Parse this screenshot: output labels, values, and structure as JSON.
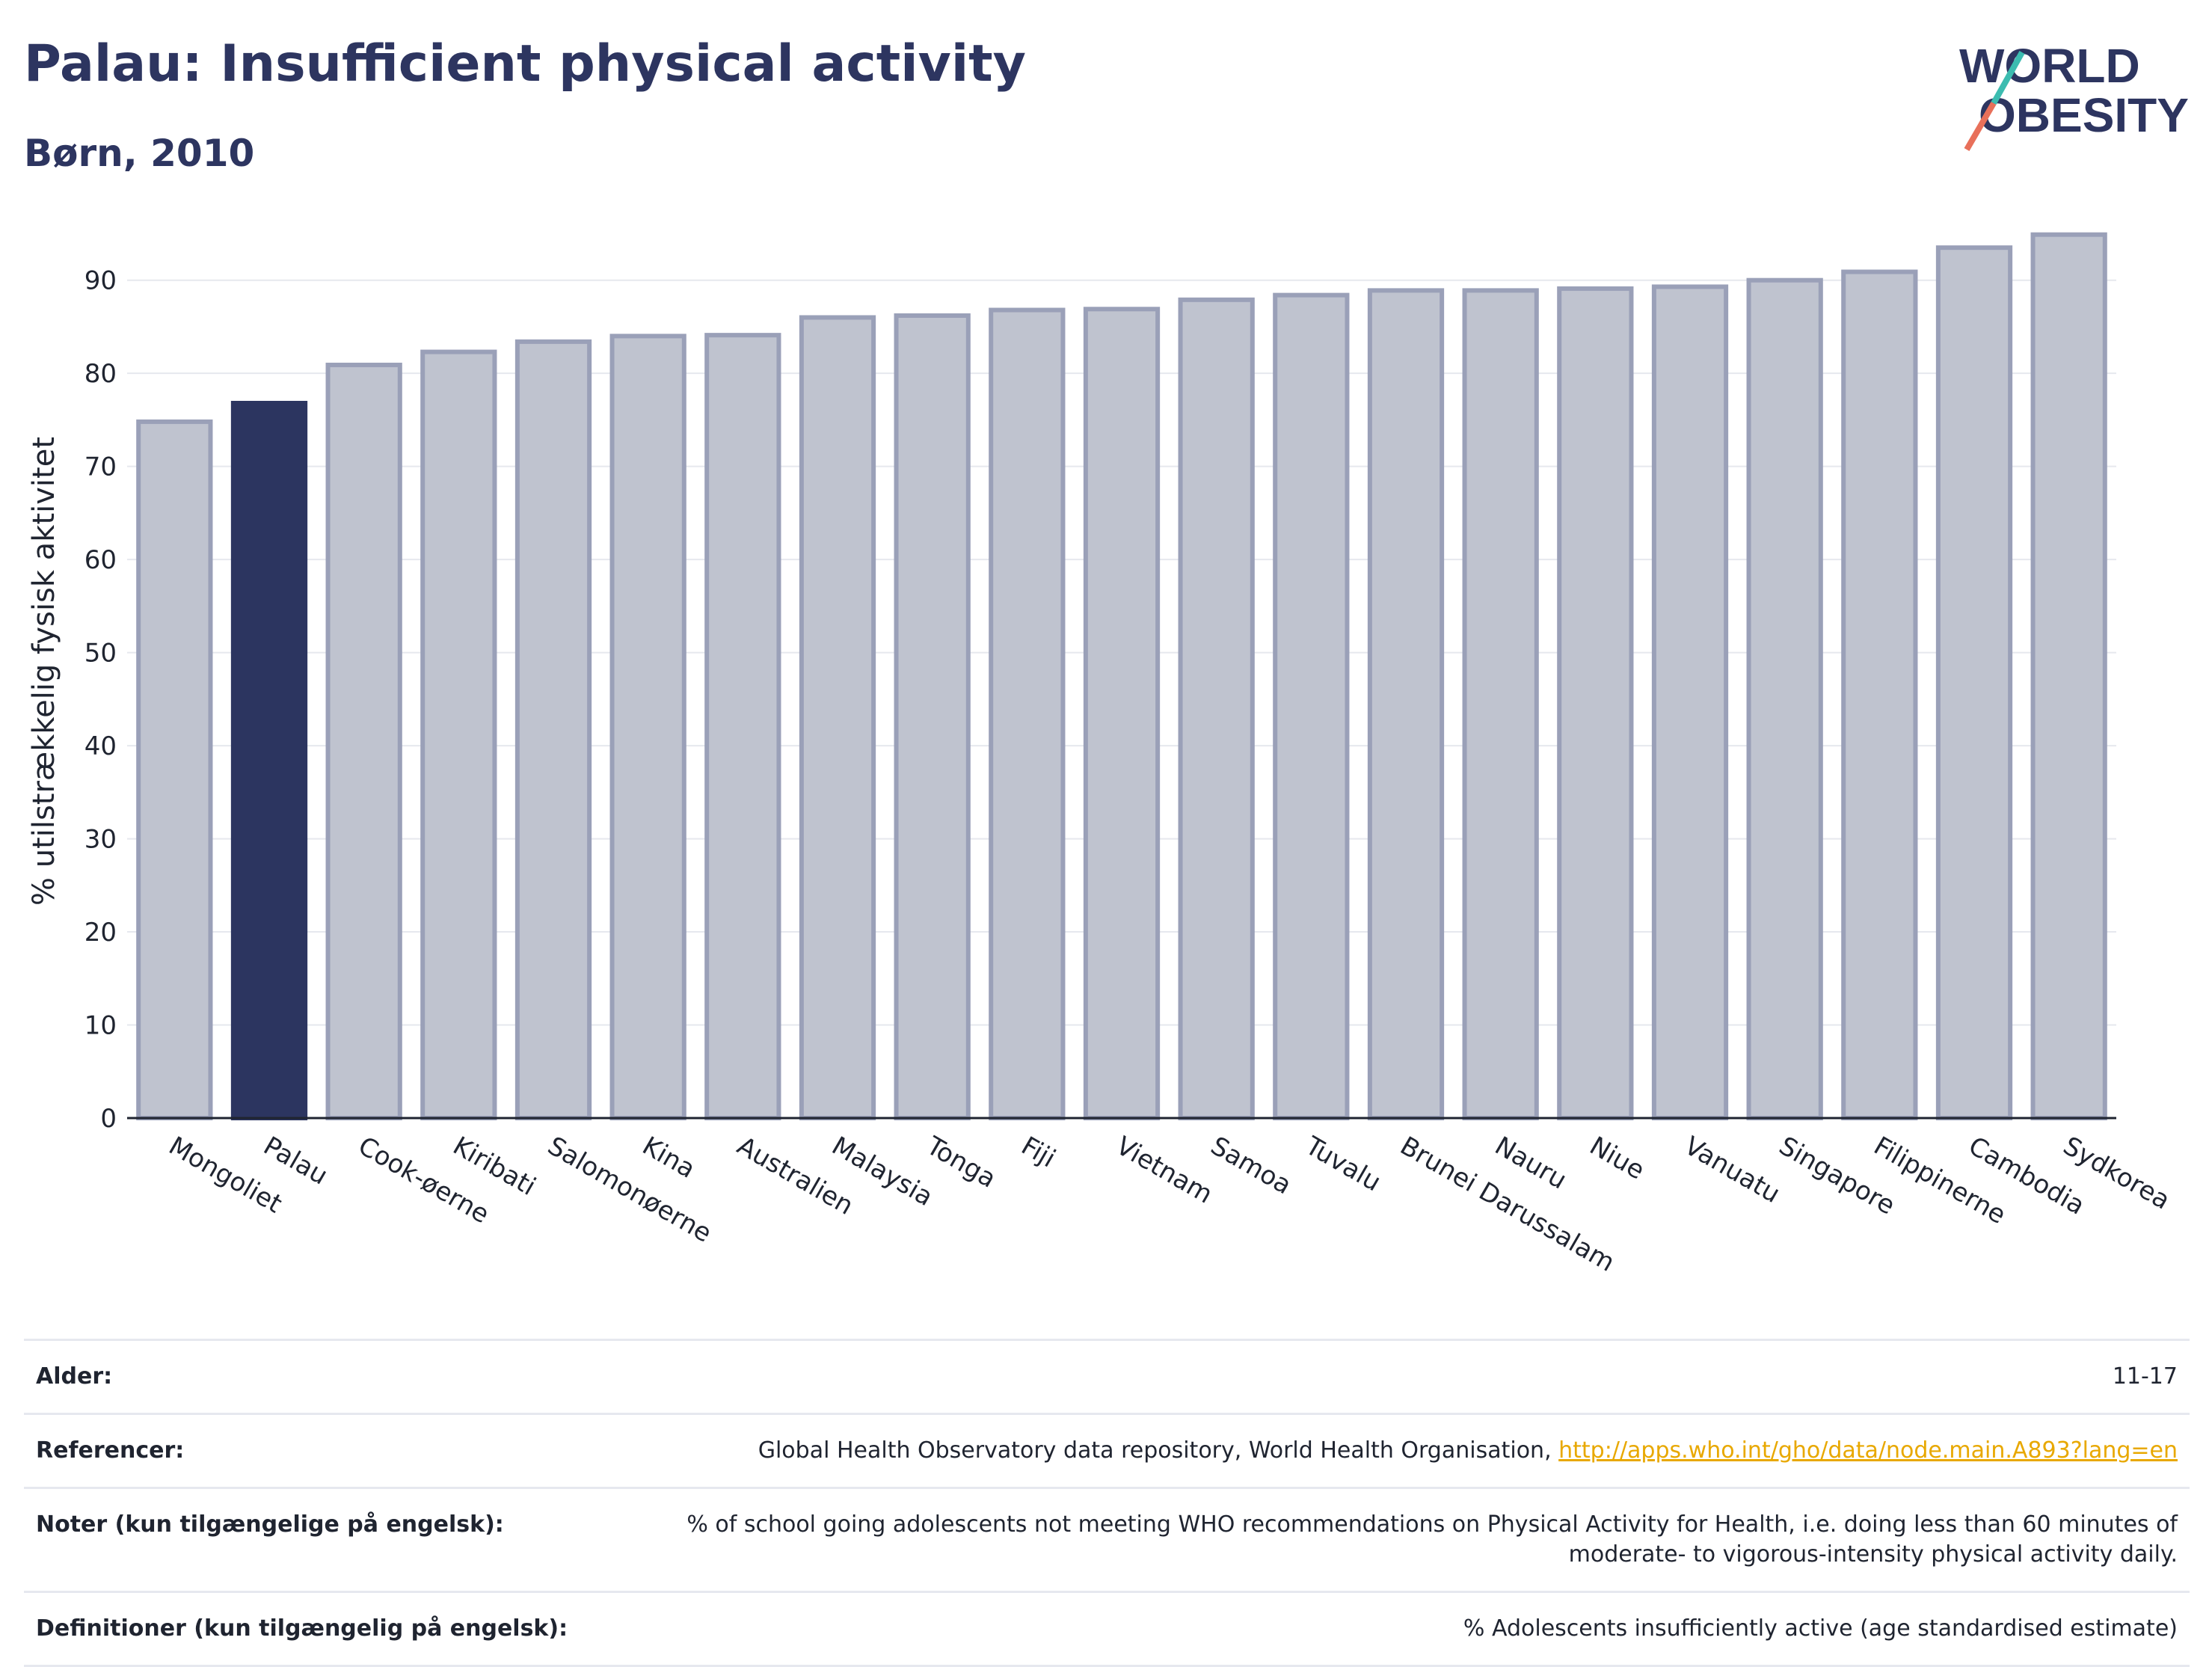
{
  "header": {
    "title": "Palau: Insufficient physical activity",
    "subtitle": "Børn, 2010"
  },
  "logo": {
    "line1": "WORLD",
    "line2": "OBESITY"
  },
  "chart_data": {
    "type": "bar",
    "ylabel": "% utilstrækkelig fysisk aktivitet",
    "ylim": [
      0,
      96
    ],
    "yticks": [
      0,
      10,
      20,
      30,
      40,
      50,
      60,
      70,
      80,
      90
    ],
    "grid": true,
    "categories": [
      "Mongoliet",
      "Palau",
      "Cook-øerne",
      "Kiribati",
      "Salomonøerne",
      "Kina",
      "Australien",
      "Malaysia",
      "Tonga",
      "Fiji",
      "Vietnam",
      "Samoa",
      "Tuvalu",
      "Brunei Darussalam",
      "Nauru",
      "Niue",
      "Vanuatu",
      "Singapore",
      "Filippinerne",
      "Cambodia",
      "Sydkorea"
    ],
    "values": [
      74.8,
      76.8,
      80.9,
      82.3,
      83.4,
      84.0,
      84.1,
      86.0,
      86.2,
      86.8,
      86.9,
      87.9,
      88.4,
      88.9,
      88.9,
      89.1,
      89.3,
      90.0,
      90.9,
      93.5,
      94.9
    ],
    "highlight": "Palau",
    "colors": {
      "bar": "#bfc3cf",
      "bar_edge": "#9aa0b8",
      "highlight": "#2c3560"
    }
  },
  "table": {
    "age_label": "Alder:",
    "age_value": "11-17",
    "refs_label": "Referencer:",
    "refs_text": "Global Health Observatory data repository, World Health Organisation, ",
    "refs_link": "http://apps.who.int/gho/data/node.main.A893?lang=en",
    "notes_label": "Noter (kun tilgængelige på engelsk):",
    "notes_value": "% of school going adolescents not meeting WHO recommendations on Physical Activity for Health, i.e. doing less than 60 minutes of moderate- to vigorous-intensity physical activity daily.",
    "defs_label": "Definitioner (kun tilgængelig på engelsk):",
    "defs_value": "% Adolescents insufficiently active (age standardised estimate)"
  }
}
